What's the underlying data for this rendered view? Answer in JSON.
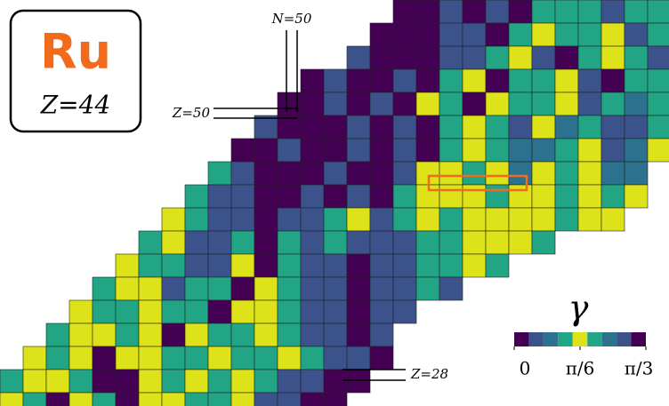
{
  "chart_data": {
    "type": "heatmap",
    "element_symbol": "Ru",
    "element_label": "Z=44",
    "annotations": [
      "N=50",
      "Z=50",
      "Z=28"
    ],
    "colorbar_label": "γ",
    "colorbar_lim": [
      0,
      1.0472
    ],
    "colorbar_ticks": [
      0,
      {
        "value": 0.5236,
        "label": "π/6"
      },
      {
        "value": 1.0472,
        "label": "π/3"
      }
    ],
    "colors": [
      "#440154",
      "#3b528b",
      "#2c728e",
      "#21a585",
      "#dde318",
      "#21a585",
      "#2c728e",
      "#3b528b",
      "#440154"
    ],
    "z": [
      [
        null,
        null,
        null,
        null,
        null,
        null,
        null,
        null,
        null,
        null,
        null,
        null,
        null,
        null,
        null,
        null,
        null,
        0.03,
        0.03,
        0.12,
        0.03,
        0.22,
        0.03,
        0.35,
        0.45,
        0.35,
        0.22,
        0.45,
        0.35
      ],
      [
        null,
        null,
        null,
        null,
        null,
        null,
        null,
        null,
        null,
        null,
        null,
        null,
        null,
        null,
        null,
        null,
        0.03,
        0.03,
        0.03,
        0.12,
        0.22,
        0.03,
        0.35,
        0.5,
        0.45,
        0.35,
        0.5,
        0.22,
        0.45
      ],
      [
        null,
        null,
        null,
        null,
        null,
        null,
        null,
        null,
        null,
        null,
        null,
        null,
        null,
        null,
        null,
        0.12,
        0.03,
        0.03,
        0.03,
        0.12,
        0.22,
        0.35,
        0.5,
        0.22,
        0.03,
        0.35,
        0.5,
        0.45,
        0.22
      ],
      [
        null,
        null,
        null,
        null,
        null,
        null,
        null,
        null,
        null,
        null,
        null,
        null,
        null,
        0.03,
        0.22,
        0.03,
        0.03,
        0.12,
        0.03,
        0.35,
        0.5,
        0.03,
        0.45,
        0.35,
        0.5,
        0.22,
        0.03,
        0.45,
        0.35
      ],
      [
        null,
        null,
        null,
        null,
        null,
        null,
        null,
        null,
        null,
        null,
        null,
        null,
        0.03,
        0.03,
        0.12,
        0.03,
        0.22,
        0.03,
        0.5,
        0.35,
        0.03,
        0.5,
        0.45,
        0.35,
        0.5,
        0.22,
        0.35,
        0.8,
        0.45
      ],
      [
        null,
        null,
        null,
        null,
        null,
        null,
        null,
        null,
        null,
        null,
        null,
        0.12,
        0.03,
        0.03,
        0.03,
        0.12,
        0.03,
        0.22,
        0.03,
        0.45,
        0.5,
        0.35,
        0.22,
        0.5,
        0.7,
        0.35,
        0.9,
        0.22,
        0.35
      ],
      [
        null,
        null,
        null,
        null,
        null,
        null,
        null,
        null,
        null,
        null,
        0.03,
        0.03,
        0.12,
        0.03,
        0.03,
        0.12,
        0.03,
        0.22,
        0.03,
        0.35,
        0.5,
        0.45,
        0.7,
        0.8,
        0.35,
        0.5,
        0.9,
        0.7,
        0.5
      ],
      [
        null,
        null,
        null,
        null,
        null,
        null,
        null,
        null,
        null,
        0.35,
        0.12,
        0.03,
        0.03,
        0.03,
        0.12,
        0.03,
        0.03,
        0.22,
        0.5,
        0.5,
        0.45,
        0.5,
        0.7,
        0.5,
        0.35,
        0.5,
        0.8,
        0.7,
        null
      ],
      [
        null,
        null,
        null,
        null,
        null,
        null,
        null,
        null,
        0.45,
        0.22,
        0.12,
        0.03,
        0.03,
        0.12,
        0.03,
        0.22,
        0.03,
        0.35,
        0.5,
        0.5,
        0.5,
        0.45,
        0.5,
        0.5,
        0.45,
        0.5,
        0.6,
        0.5,
        null
      ],
      [
        null,
        null,
        null,
        null,
        null,
        null,
        null,
        0.5,
        0.35,
        0.22,
        0.12,
        0.03,
        0.22,
        0.12,
        0.35,
        0.5,
        0.22,
        0.35,
        0.5,
        0.45,
        0.5,
        0.5,
        0.5,
        0.5,
        0.45,
        0.5,
        0.5,
        null,
        null
      ],
      [
        null,
        null,
        null,
        null,
        null,
        null,
        0.35,
        0.5,
        0.22,
        0.12,
        0.35,
        0.03,
        0.45,
        0.22,
        0.35,
        0.22,
        0.12,
        0.22,
        0.35,
        0.45,
        0.5,
        0.5,
        0.5,
        0.45,
        null,
        null,
        null,
        null,
        null
      ],
      [
        null,
        null,
        null,
        null,
        null,
        0.5,
        0.45,
        0.35,
        0.12,
        0.22,
        0.5,
        0.03,
        0.35,
        0.22,
        0.12,
        0.03,
        0.12,
        0.22,
        0.35,
        0.45,
        0.5,
        0.45,
        null,
        null,
        null,
        null,
        null,
        null,
        null
      ],
      [
        null,
        null,
        null,
        null,
        0.45,
        0.5,
        0.5,
        0.22,
        0.35,
        0.45,
        0.03,
        0.5,
        0.35,
        0.22,
        0.12,
        0.03,
        0.12,
        0.22,
        0.35,
        0.22,
        null,
        null,
        null,
        null,
        null,
        null,
        null,
        null,
        null
      ],
      [
        null,
        null,
        null,
        0.5,
        0.45,
        0.35,
        0.5,
        0.45,
        0.35,
        0.03,
        0.5,
        0.5,
        0.35,
        0.22,
        0.12,
        0.03,
        0.12,
        0.22,
        null,
        null,
        null,
        null,
        null,
        null,
        null,
        null,
        null,
        null,
        null
      ],
      [
        null,
        null,
        0.35,
        0.5,
        0.5,
        0.45,
        0.5,
        0.03,
        0.5,
        0.45,
        0.35,
        0.5,
        0.35,
        0.22,
        0.12,
        0.03,
        0.12,
        null,
        null,
        null,
        null,
        null,
        null,
        null,
        null,
        null,
        null,
        null,
        null
      ],
      [
        null,
        0.5,
        0.45,
        0.5,
        0.03,
        0.5,
        0.5,
        0.35,
        0.45,
        0.5,
        0.35,
        0.45,
        0.5,
        0.35,
        0.22,
        0.12,
        0.03,
        null,
        null,
        null,
        null,
        null,
        null,
        null,
        null,
        null,
        null,
        null,
        null
      ],
      [
        0.45,
        0.5,
        0.5,
        0.35,
        0.03,
        0.03,
        0.5,
        0.45,
        0.5,
        0.35,
        0.5,
        0.45,
        0.22,
        0.12,
        0.03,
        0.03,
        null,
        null,
        null,
        null,
        null,
        null,
        null,
        null,
        null,
        null,
        null,
        null,
        null
      ],
      [
        0.5,
        0.35,
        0.03,
        0.5,
        0.45,
        0.03,
        0.5,
        0.5,
        0.35,
        0.45,
        0.5,
        0.22,
        0.12,
        0.03,
        0.03,
        null,
        null,
        null,
        null,
        null,
        null,
        null,
        null,
        null,
        null,
        null,
        null,
        null,
        null
      ]
    ]
  }
}
